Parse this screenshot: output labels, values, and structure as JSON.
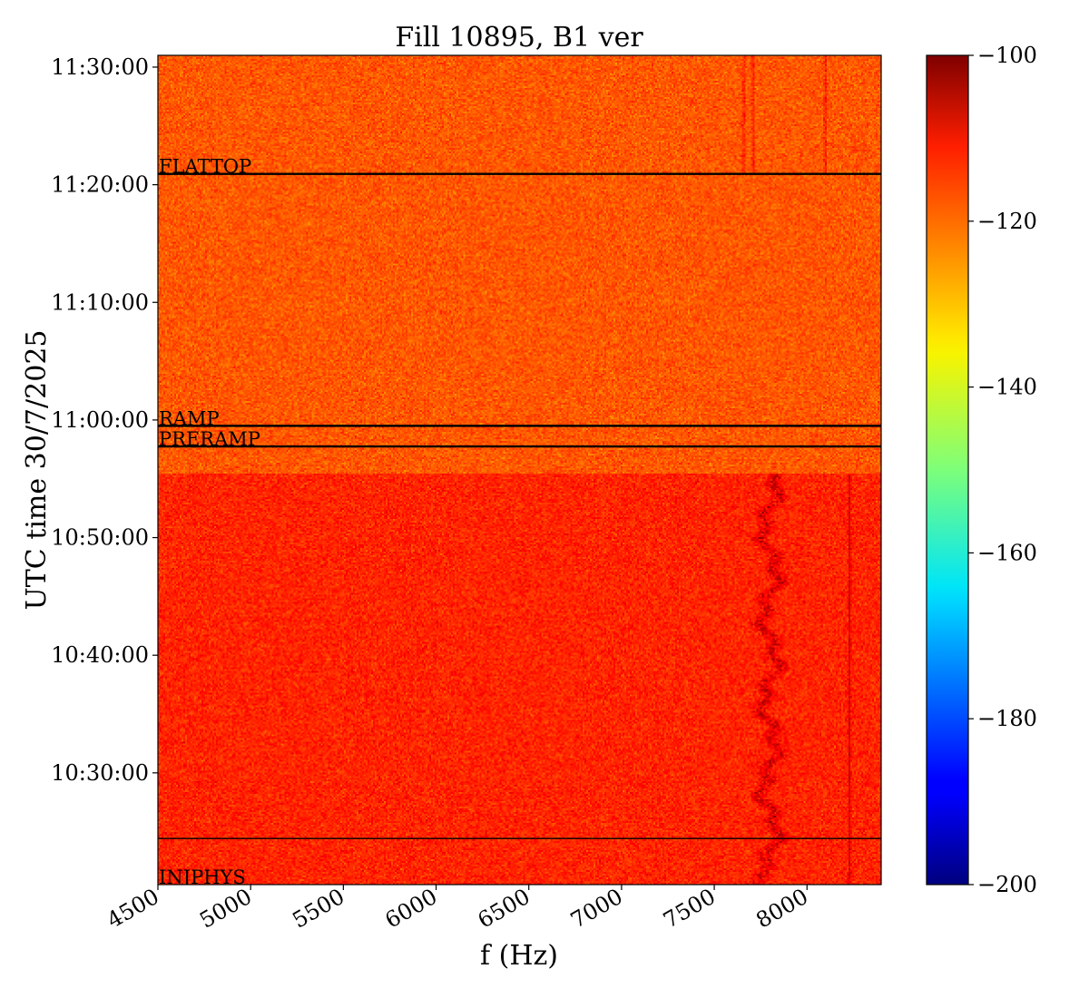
{
  "chart_data": {
    "type": "heatmap",
    "title": "Fill 10895, B1 ver",
    "xlabel": "f (Hz)",
    "ylabel": "UTC time 30/7/2025",
    "xlim": [
      4500,
      8400
    ],
    "x_ticks": [
      4500,
      5000,
      5500,
      6000,
      6500,
      7000,
      7500,
      8000
    ],
    "ylim": [
      "10:20:30",
      "11:31:00"
    ],
    "y_ticks": [
      "10:30:00",
      "10:40:00",
      "10:50:00",
      "11:00:00",
      "11:10:00",
      "11:20:00",
      "11:30:00"
    ],
    "colorbar": {
      "range": [
        -200,
        -100
      ],
      "ticks": [
        -100,
        -120,
        -140,
        -160,
        -180,
        -200
      ],
      "colormap": "jet",
      "tick_labels": [
        "−100",
        "−120",
        "−140",
        "−160",
        "−180",
        "−200"
      ]
    },
    "annotations": [
      {
        "label": "FLATTOP",
        "time": "11:20:55"
      },
      {
        "label": "RAMP",
        "time": "10:59:30"
      },
      {
        "label": "PRERAMP",
        "time": "10:57:45"
      },
      {
        "label": "",
        "time": "10:24:25"
      },
      {
        "label": "INJPHYS",
        "time": "10:20:30"
      }
    ],
    "regions": [
      {
        "from": "10:20:30",
        "to": "10:55:30",
        "mean_db": -116
      },
      {
        "from": "10:55:30",
        "to": "11:31:00",
        "mean_db": -121
      }
    ],
    "features": [
      {
        "f_hz": 7800,
        "from": "10:20:30",
        "to": "10:55:30",
        "note": "wandering dark line"
      },
      {
        "f_hz": 8230,
        "from": "10:20:30",
        "to": "10:55:30"
      },
      {
        "f_hz": 7660,
        "from": "11:20:55",
        "to": "11:31:00"
      },
      {
        "f_hz": 7710,
        "from": "11:20:55",
        "to": "11:31:00"
      },
      {
        "f_hz": 8100,
        "from": "11:20:55",
        "to": "11:31:00"
      }
    ]
  }
}
